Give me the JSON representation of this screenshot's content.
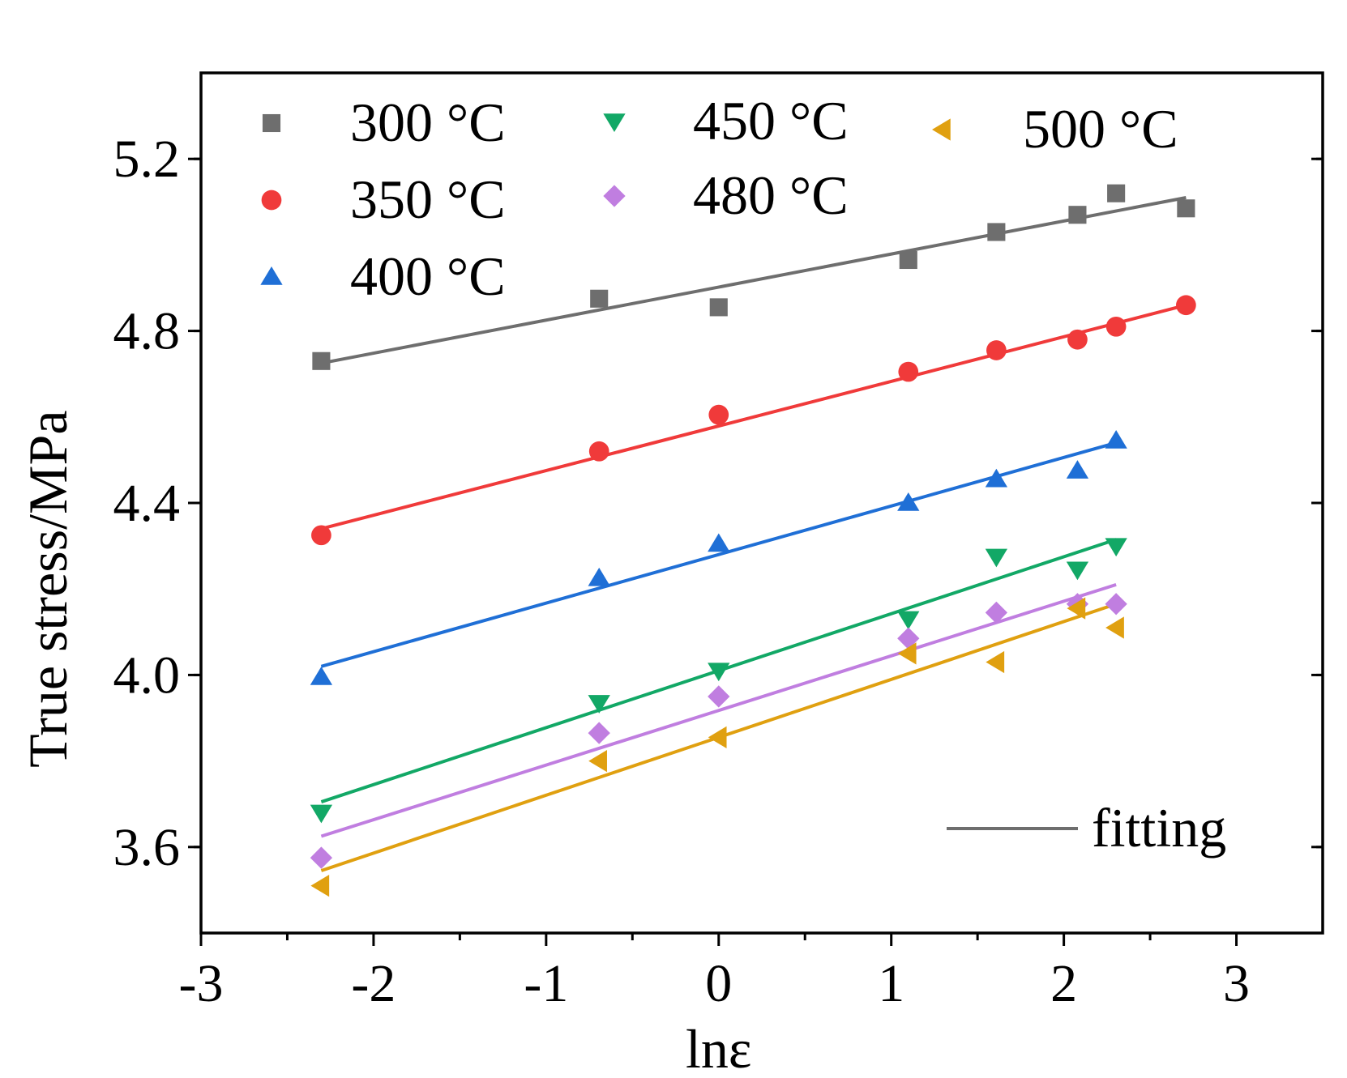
{
  "chart_data": {
    "type": "scatter",
    "title": "",
    "xlabel": "lnε",
    "ylabel": "True stress/MPa",
    "xlim": [
      -3,
      3.5
    ],
    "ylim": [
      3.4,
      5.4
    ],
    "x_ticks": [
      -3,
      -2,
      -1,
      0,
      1,
      2,
      3
    ],
    "x_tick_labels": [
      "-3",
      "-2",
      "-1",
      "0",
      "1",
      "2",
      "3"
    ],
    "y_ticks": [
      3.6,
      4.0,
      4.4,
      4.8,
      5.2
    ],
    "y_tick_labels": [
      "3.6",
      "4.0",
      "4.4",
      "4.8",
      "5.2"
    ],
    "fit_legend_label": "fitting",
    "series": [
      {
        "name": "300 °C",
        "marker": "square",
        "color": "#6e6e6e",
        "x": [
          -2.303,
          -0.693,
          0.0,
          1.099,
          1.609,
          2.079,
          2.303,
          2.708
        ],
        "y": [
          4.73,
          4.875,
          4.855,
          4.965,
          5.03,
          5.07,
          5.12,
          5.085
        ],
        "fit_x": [
          -2.303,
          2.708
        ],
        "fit_y": [
          4.725,
          5.11
        ]
      },
      {
        "name": "350 °C",
        "marker": "circle",
        "color": "#f03a3a",
        "x": [
          -2.303,
          -0.693,
          0.0,
          1.099,
          1.609,
          2.079,
          2.303,
          2.708
        ],
        "y": [
          4.325,
          4.52,
          4.605,
          4.705,
          4.755,
          4.78,
          4.81,
          4.86
        ],
        "fit_x": [
          -2.303,
          2.708
        ],
        "fit_y": [
          4.34,
          4.86
        ]
      },
      {
        "name": "400 °C",
        "marker": "triangle-up",
        "color": "#1f6fd6",
        "x": [
          -2.303,
          -0.693,
          0.0,
          1.099,
          1.609,
          2.079,
          2.303
        ],
        "y": [
          3.995,
          4.225,
          4.305,
          4.4,
          4.455,
          4.475,
          4.545
        ],
        "fit_x": [
          -2.303,
          2.303
        ],
        "fit_y": [
          4.02,
          4.54
        ]
      },
      {
        "name": "450 °C",
        "marker": "triangle-down",
        "color": "#12a866",
        "x": [
          -2.303,
          -0.693,
          0.0,
          1.099,
          1.609,
          2.079,
          2.303
        ],
        "y": [
          3.68,
          3.935,
          4.01,
          4.13,
          4.275,
          4.245,
          4.3
        ],
        "fit_x": [
          -2.303,
          2.303
        ],
        "fit_y": [
          3.705,
          4.315
        ]
      },
      {
        "name": "480 °C",
        "marker": "diamond",
        "color": "#c07ee0",
        "x": [
          -2.303,
          -0.693,
          0.0,
          1.099,
          1.609,
          2.079,
          2.303
        ],
        "y": [
          3.575,
          3.865,
          3.95,
          4.085,
          4.145,
          4.165,
          4.165
        ],
        "fit_x": [
          -2.303,
          2.303
        ],
        "fit_y": [
          3.625,
          4.21
        ]
      },
      {
        "name": "500 °C",
        "marker": "triangle-left",
        "color": "#e0a010",
        "x": [
          -2.303,
          -0.693,
          0.0,
          1.099,
          1.609,
          2.079,
          2.303
        ],
        "y": [
          3.51,
          3.8,
          3.855,
          4.05,
          4.03,
          4.155,
          4.11
        ],
        "fit_x": [
          -2.303,
          2.303
        ],
        "fit_y": [
          3.545,
          4.165
        ]
      }
    ]
  }
}
